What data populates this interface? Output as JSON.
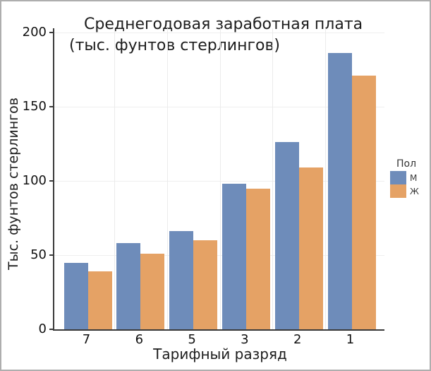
{
  "frame": {
    "background": "#ffffff",
    "border_color": "#aeaeae",
    "axis_color": "#3a3a3a",
    "text_color": "#1d1d1d"
  },
  "chart_data": {
    "type": "bar",
    "title_line1": "Среднегодовая заработная плата",
    "title_line2": "(тыс. фунтов стерлингов)",
    "xlabel": "Тарифный разряд",
    "ylabel": "Тыс. фунтов стерлингов",
    "categories": [
      "7",
      "6",
      "5",
      "3",
      "2",
      "1"
    ],
    "series": [
      {
        "name": "М",
        "key": "male",
        "color": "#6E8CBA",
        "values": [
          45,
          58,
          66,
          98,
          126,
          186
        ]
      },
      {
        "name": "Ж",
        "key": "female",
        "color": "#E5A265",
        "values": [
          39,
          51,
          60,
          95,
          109,
          171
        ]
      }
    ],
    "y_ticks": [
      0,
      50,
      100,
      150,
      200
    ],
    "ylim": [
      0,
      200
    ],
    "grid": "faint horizontal and vertical",
    "legend": {
      "title": "Пол",
      "position": "right",
      "entries": [
        "М",
        "Ж"
      ]
    }
  }
}
